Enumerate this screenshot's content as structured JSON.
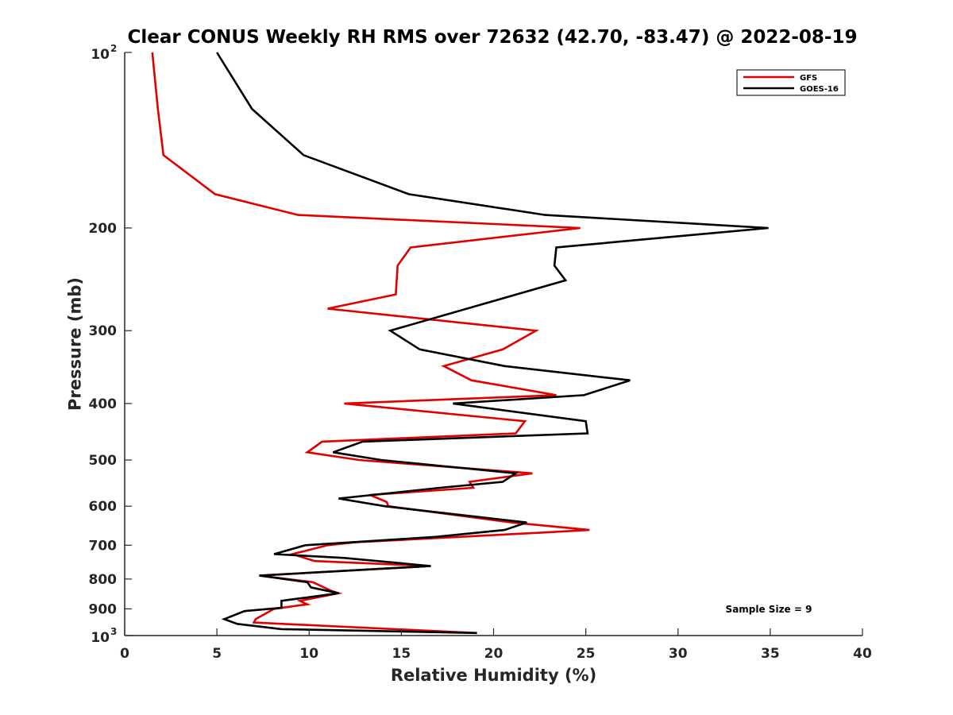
{
  "chart_data": {
    "type": "line",
    "title": "Clear CONUS Weekly RH RMS over 72632 (42.70, -83.47) @ 2022-08-19",
    "xlabel": "Relative Humidity (%)",
    "ylabel": "Pressure (mb)",
    "xlim": [
      0,
      40
    ],
    "ylim": [
      100,
      1000
    ],
    "y_scale": "log",
    "y_reversed": true,
    "x_ticks": [
      "0",
      "5",
      "10",
      "15",
      "20",
      "25",
      "30",
      "35",
      "40"
    ],
    "y_ticks": [
      {
        "value": 100,
        "base": "10",
        "exp": "2"
      },
      {
        "value": 200,
        "label": "200"
      },
      {
        "value": 300,
        "label": "300"
      },
      {
        "value": 400,
        "label": "400"
      },
      {
        "value": 500,
        "label": "500"
      },
      {
        "value": 600,
        "label": "600"
      },
      {
        "value": 700,
        "label": "700"
      },
      {
        "value": 800,
        "label": "800"
      },
      {
        "value": 900,
        "label": "900"
      },
      {
        "value": 1000,
        "base": "10",
        "exp": "3"
      }
    ],
    "legend_position": "top-right",
    "grid": false,
    "annotation": "Sample Size = 9",
    "series": [
      {
        "name": "GFS",
        "color": "#e00000",
        "points": [
          [
            1.5,
            100
          ],
          [
            1.8,
            125
          ],
          [
            2.1,
            150
          ],
          [
            4.9,
            175
          ],
          [
            9.4,
            190
          ],
          [
            24.7,
            200
          ],
          [
            15.5,
            216
          ],
          [
            14.8,
            232
          ],
          [
            14.7,
            260
          ],
          [
            11.0,
            275
          ],
          [
            22.3,
            300
          ],
          [
            20.5,
            323
          ],
          [
            17.3,
            345
          ],
          [
            18.8,
            365
          ],
          [
            23.4,
            387
          ],
          [
            11.9,
            400
          ],
          [
            21.7,
            429
          ],
          [
            21.2,
            450
          ],
          [
            10.7,
            465
          ],
          [
            9.9,
            485
          ],
          [
            12.7,
            500
          ],
          [
            22.1,
            527
          ],
          [
            18.7,
            545
          ],
          [
            18.9,
            558
          ],
          [
            13.3,
            574
          ],
          [
            14.2,
            590
          ],
          [
            14.3,
            600
          ],
          [
            21.0,
            640
          ],
          [
            25.2,
            659
          ],
          [
            22.6,
            666
          ],
          [
            12.5,
            692
          ],
          [
            11.0,
            700
          ],
          [
            9.1,
            725
          ],
          [
            10.3,
            745
          ],
          [
            16.6,
            760
          ],
          [
            7.3,
            789
          ],
          [
            10.2,
            810
          ],
          [
            11.2,
            838
          ],
          [
            11.6,
            846
          ],
          [
            9.5,
            872
          ],
          [
            9.9,
            884
          ],
          [
            8.1,
            900
          ],
          [
            7.1,
            937
          ],
          [
            7.0,
            950
          ],
          [
            19.1,
            990
          ]
        ]
      },
      {
        "name": "GOES-16",
        "color": "#000000",
        "points": [
          [
            5.0,
            100
          ],
          [
            6.9,
            125
          ],
          [
            9.7,
            150
          ],
          [
            15.4,
            175
          ],
          [
            22.8,
            190
          ],
          [
            34.9,
            200
          ],
          [
            23.4,
            216
          ],
          [
            23.3,
            232
          ],
          [
            23.9,
            246
          ],
          [
            14.4,
            300
          ],
          [
            16.0,
            323
          ],
          [
            20.6,
            345
          ],
          [
            27.4,
            365
          ],
          [
            24.9,
            387
          ],
          [
            17.8,
            400
          ],
          [
            25.0,
            429
          ],
          [
            25.1,
            450
          ],
          [
            12.9,
            465
          ],
          [
            11.3,
            485
          ],
          [
            13.9,
            500
          ],
          [
            21.2,
            527
          ],
          [
            20.5,
            545
          ],
          [
            17.1,
            558
          ],
          [
            11.6,
            582
          ],
          [
            14.1,
            600
          ],
          [
            21.8,
            640
          ],
          [
            20.6,
            659
          ],
          [
            16.9,
            677
          ],
          [
            9.8,
            700
          ],
          [
            8.1,
            725
          ],
          [
            11.9,
            736
          ],
          [
            16.6,
            760
          ],
          [
            7.3,
            789
          ],
          [
            9.9,
            810
          ],
          [
            10.1,
            827
          ],
          [
            11.6,
            846
          ],
          [
            8.5,
            872
          ],
          [
            8.5,
            896
          ],
          [
            6.5,
            908
          ],
          [
            5.4,
            937
          ],
          [
            6.1,
            955
          ],
          [
            8.5,
            975
          ],
          [
            19.1,
            990
          ]
        ]
      }
    ]
  }
}
